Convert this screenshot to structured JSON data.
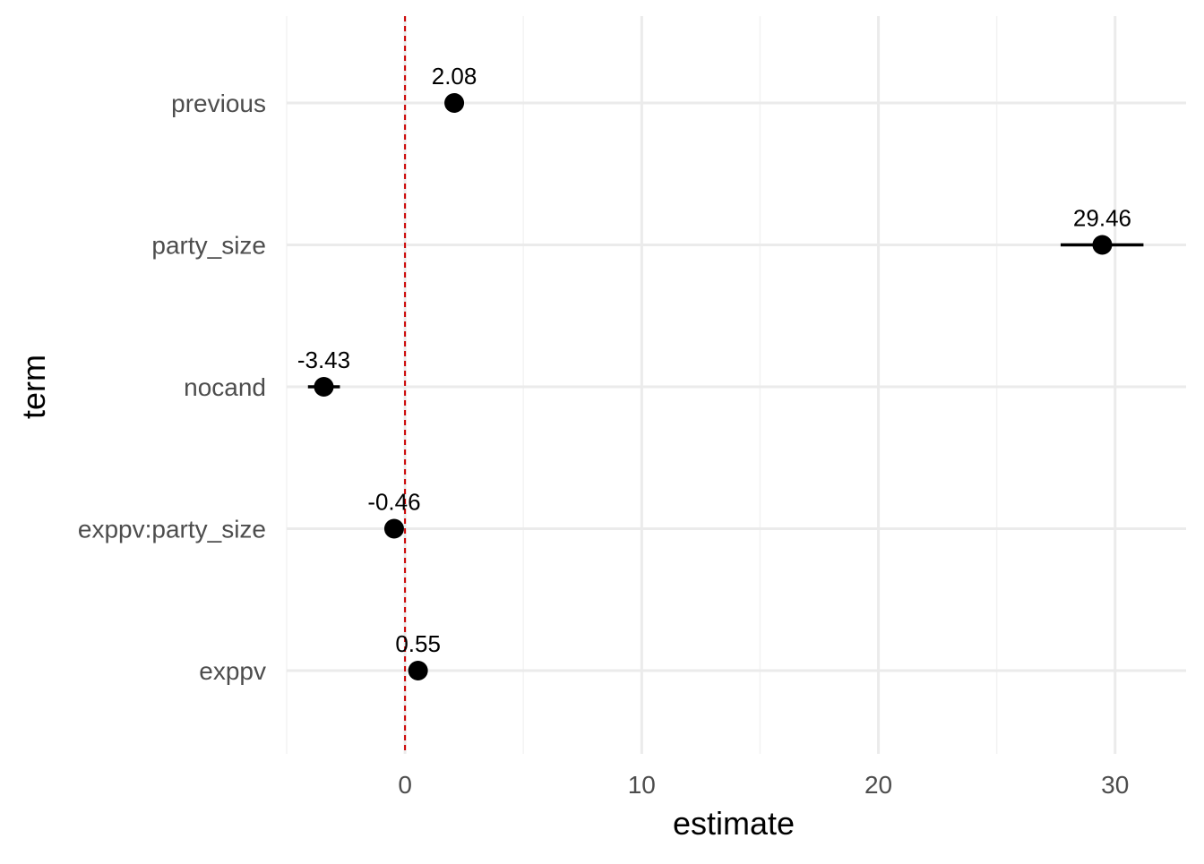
{
  "chart_data": {
    "type": "scatter",
    "subtype": "coefficient-plot",
    "title": "",
    "xlabel": "estimate",
    "ylabel": "term",
    "xlim": [
      -5,
      33
    ],
    "x_ticks": [
      0,
      10,
      20,
      30
    ],
    "x_tick_labels": [
      "0",
      "10",
      "20",
      "30"
    ],
    "x_minor_ticks": [
      -5,
      5,
      15,
      25
    ],
    "grid": true,
    "reference_line": {
      "x": 0,
      "color": "#cc0000",
      "style": "dashed"
    },
    "categories": [
      "previous",
      "party_size",
      "nocand",
      "exppv:party_size",
      "exppv"
    ],
    "points": [
      {
        "term": "previous",
        "estimate": 2.08,
        "label": "2.08",
        "ci_low": 1.9,
        "ci_high": 2.26
      },
      {
        "term": "party_size",
        "estimate": 29.46,
        "label": "29.46",
        "ci_low": 27.7,
        "ci_high": 31.2
      },
      {
        "term": "nocand",
        "estimate": -3.43,
        "label": "-3.43",
        "ci_low": -4.1,
        "ci_high": -2.75
      },
      {
        "term": "exppv:party_size",
        "estimate": -0.46,
        "label": "-0.46",
        "ci_low": -0.65,
        "ci_high": -0.27
      },
      {
        "term": "exppv",
        "estimate": 0.55,
        "label": "0.55",
        "ci_low": 0.45,
        "ci_high": 0.65
      }
    ],
    "colors": {
      "point": "#000000",
      "grid_major": "#ebebeb",
      "grid_minor": "#f3f3f3",
      "reference": "#cc0000"
    }
  }
}
